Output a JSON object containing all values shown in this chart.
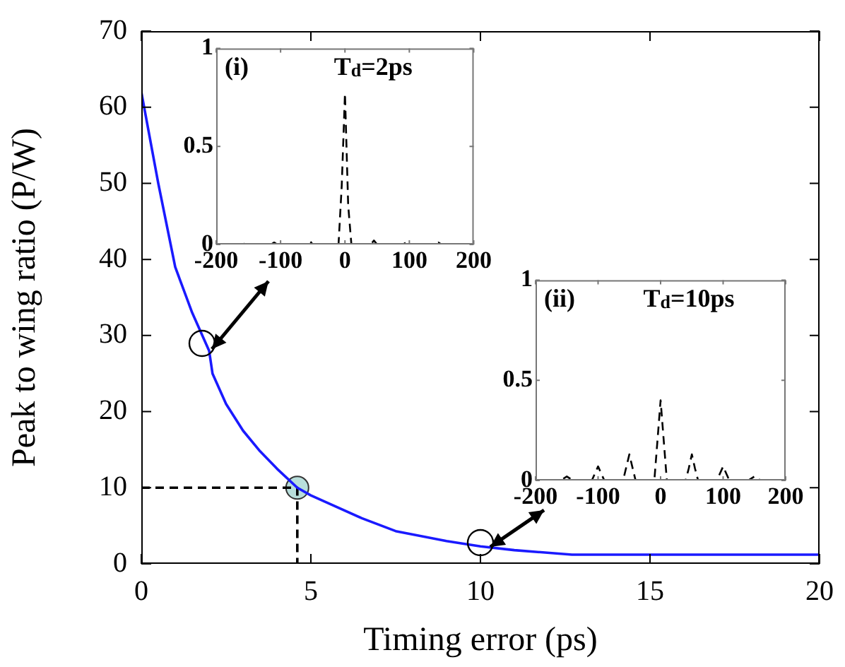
{
  "chart_data": [
    {
      "type": "line",
      "xlabel": "Timing error (ps)",
      "ylabel": "Peak to wing ratio (P/W)",
      "xlim": [
        0,
        20
      ],
      "xticks": [
        0,
        5,
        10,
        15,
        20
      ],
      "ylim": [
        0,
        70
      ],
      "yticks": [
        0,
        10,
        20,
        30,
        40,
        50,
        60,
        70
      ],
      "marker": "none",
      "legend": false,
      "series": [
        {
          "color": "#1a1aff",
          "line_style": "solid",
          "x": [
            0,
            0.5,
            1,
            1.5,
            2,
            2.1,
            2.5,
            3,
            3.5,
            4,
            4.6,
            5,
            5.5,
            6.5,
            7.5,
            9,
            10,
            11,
            12.7,
            15,
            20
          ],
          "values": [
            62,
            50,
            39,
            33,
            28,
            25,
            21,
            17.5,
            14.8,
            12.5,
            10,
            9,
            8,
            6,
            4.3,
            3,
            2.3,
            1.8,
            1.2,
            1.2,
            1.2
          ]
        },
        {
          "type": "line",
          "color": "#000000",
          "line_style": "dashed",
          "x": [
            0,
            4.6,
            4.6
          ],
          "values": [
            10,
            10,
            0
          ]
        },
        {
          "type": "scatter",
          "color": "#b8dedb",
          "marker": "circle",
          "x": [
            4.6
          ],
          "values": [
            10
          ]
        }
      ]
    },
    {
      "type": "line",
      "title": "T$_{d}$=2ps",
      "annotations": [
        "(i)"
      ],
      "xlim": [
        -200,
        200
      ],
      "xticks": [
        -200,
        -100,
        0,
        100,
        200
      ],
      "ylim": [
        0,
        1
      ],
      "yticks": [
        0,
        0.5,
        1
      ],
      "marker": "none",
      "legend": false,
      "series": [
        {
          "color": "#000000",
          "line_style": "dashed",
          "x": [
            -200,
            -165,
            -160,
            -155,
            -115,
            -110,
            -105,
            -60,
            -55,
            -50,
            -10,
            -5,
            0,
            5,
            10,
            40,
            45,
            50,
            90,
            95,
            100,
            140,
            145,
            150,
            200
          ],
          "values": [
            0,
            0,
            0.01,
            0,
            0,
            0.01,
            0,
            0,
            0.02,
            0,
            0,
            0.3,
            0.77,
            0.2,
            0,
            0,
            0.02,
            0,
            0,
            0.01,
            0,
            0,
            0.01,
            0,
            0
          ]
        }
      ]
    },
    {
      "type": "line",
      "title": "T$_{d}$=10ps",
      "annotations": [
        "(ii)"
      ],
      "xlim": [
        -200,
        200
      ],
      "xticks": [
        -200,
        -100,
        0,
        100,
        200
      ],
      "ylim": [
        0,
        1
      ],
      "yticks": [
        0,
        0.5,
        1
      ],
      "marker": "none",
      "legend": false,
      "series": [
        {
          "color": "#000000",
          "line_style": "dashed",
          "x": [
            -200,
            -160,
            -150,
            -140,
            -110,
            -100,
            -90,
            -60,
            -50,
            -40,
            -10,
            -5,
            0,
            5,
            10,
            40,
            45,
            50,
            55,
            60,
            90,
            100,
            110,
            140,
            150,
            160,
            200
          ],
          "values": [
            0,
            0,
            0.02,
            0,
            0,
            0.07,
            0,
            0,
            0.13,
            0,
            0,
            0.2,
            0.4,
            0.2,
            0,
            0,
            0.06,
            0.13,
            0.06,
            0,
            0,
            0.07,
            0,
            0,
            0.02,
            0,
            0
          ]
        }
      ]
    }
  ]
}
